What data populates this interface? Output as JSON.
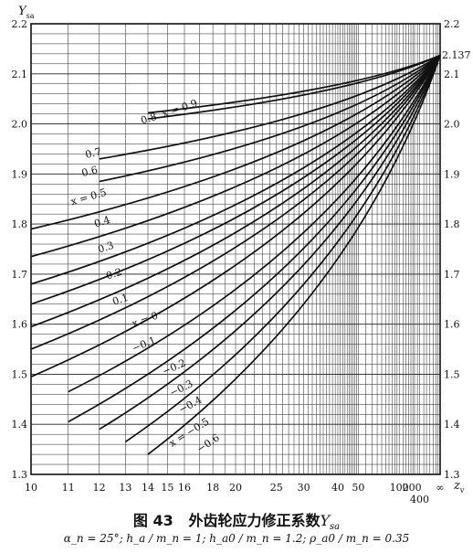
{
  "chart_data": {
    "type": "line",
    "figure_no": "图 43",
    "title": "外齿轮应力修正系数",
    "title_symbol": "Y",
    "title_symbol_sub": "sa",
    "conditions": "α_n = 25°;  h_a / m_n = 1;  h_a0 / m_n = 1.2;  ρ_a0 / m_n = 0.35",
    "ylabel": "Y",
    "ylabel_sub": "sa",
    "xlabel": "z",
    "xlabel_sub": "v",
    "ylim": [
      1.3,
      2.2
    ],
    "y_ticks": [
      "1.3",
      "1.4",
      "1.5",
      "1.6",
      "1.7",
      "1.8",
      "1.9",
      "2.0",
      "2.1",
      "2.2"
    ],
    "right_y_ticks": [
      "1.3",
      "1.4",
      "1.5",
      "1.6",
      "1.7",
      "1.8",
      "1.9",
      "2.0",
      "2.1",
      "2.2"
    ],
    "right_annotation": "2.137",
    "x_ticks": [
      "10",
      "11",
      "12",
      "13",
      "14",
      "15",
      "16",
      "18",
      "20",
      "25",
      "30",
      "40",
      "50",
      "100",
      "200",
      "∞"
    ],
    "x_extra_label": "400",
    "limit_value": 2.137,
    "grid": true,
    "series": [
      {
        "label": "x = 0.9",
        "start_z": 14,
        "start_y": 2.022
      },
      {
        "label": "0.8",
        "start_z": 14,
        "start_y": 2.01
      },
      {
        "label": "0.7",
        "start_z": 12,
        "start_y": 1.93
      },
      {
        "label": "0.6",
        "start_z": 12,
        "start_y": 1.885
      },
      {
        "label": "x = 0.5",
        "start_z": 10,
        "start_y": 1.79
      },
      {
        "label": "0.4",
        "start_z": 10,
        "start_y": 1.735
      },
      {
        "label": "0.3",
        "start_z": 10,
        "start_y": 1.68
      },
      {
        "label": "0.2",
        "start_z": 10,
        "start_y": 1.64
      },
      {
        "label": "0.1",
        "start_z": 10,
        "start_y": 1.595
      },
      {
        "label": "x = 0",
        "start_z": 10,
        "start_y": 1.55
      },
      {
        "label": "−0.1",
        "start_z": 10,
        "start_y": 1.495
      },
      {
        "label": "−0.2",
        "start_z": 11,
        "start_y": 1.465
      },
      {
        "label": "−0.3",
        "start_z": 11,
        "start_y": 1.405
      },
      {
        "label": "−0.4",
        "start_z": 12,
        "start_y": 1.39
      },
      {
        "label": "x = −0.5",
        "start_z": 13,
        "start_y": 1.365
      },
      {
        "label": "−0.6",
        "start_z": 14,
        "start_y": 1.34
      }
    ]
  }
}
